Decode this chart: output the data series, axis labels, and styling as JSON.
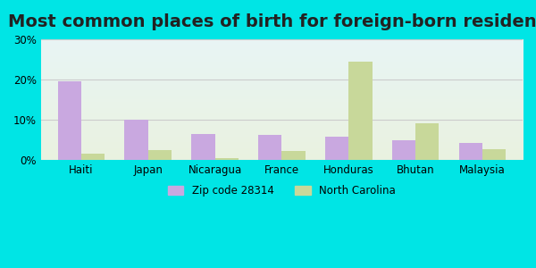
{
  "title": "Most common places of birth for foreign-born residents",
  "categories": [
    "Haiti",
    "Japan",
    "Nicaragua",
    "France",
    "Honduras",
    "Bhutan",
    "Malaysia"
  ],
  "zip_values": [
    19.5,
    10.0,
    6.5,
    6.2,
    5.8,
    5.0,
    4.2
  ],
  "nc_values": [
    1.5,
    2.5,
    0.5,
    2.2,
    24.5,
    9.2,
    2.8
  ],
  "zip_color": "#c9a8e0",
  "nc_color": "#c8d89a",
  "background_outer": "#00e5e5",
  "background_inner_top": "#e8f5f5",
  "background_inner_bottom": "#e8f0d8",
  "grid_color": "#cccccc",
  "yticks": [
    0,
    10,
    20,
    30
  ],
  "ylim": [
    0,
    30
  ],
  "bar_width": 0.35,
  "legend_zip": "Zip code 28314",
  "legend_nc": "North Carolina",
  "title_fontsize": 14,
  "label_fontsize": 9,
  "tick_fontsize": 8.5
}
